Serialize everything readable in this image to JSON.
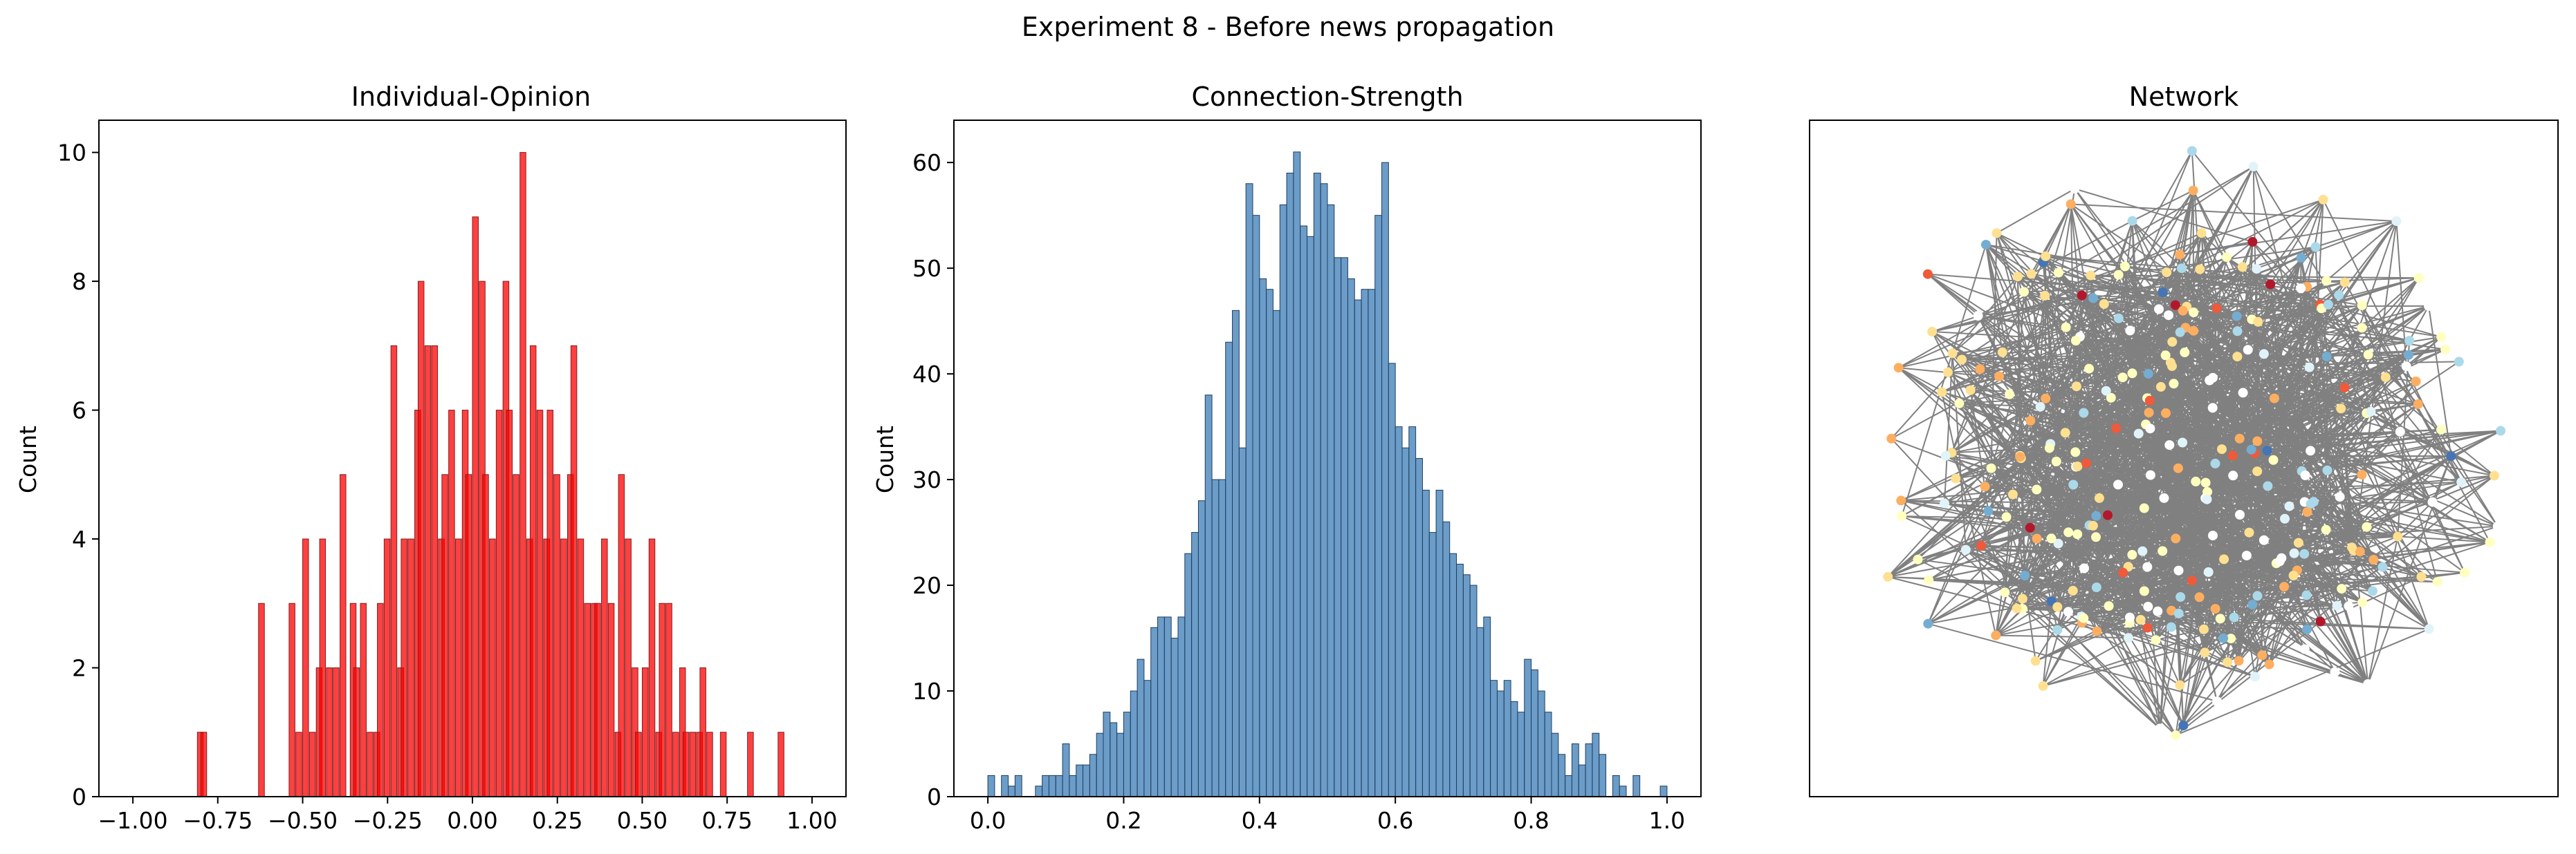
{
  "figure": {
    "suptitle": "Experiment 8 - Before news propagation"
  },
  "chart_data": [
    {
      "type": "bar",
      "title": "Individual-Opinion",
      "xlabel": "",
      "ylabel": "Count",
      "xlim": [
        -1.1,
        1.1
      ],
      "ylim": [
        0,
        10.5
      ],
      "bin_width": 0.0173,
      "color": "#ff0000",
      "edgecolor": "#7f1f1f",
      "xticks": [
        -1.0,
        -0.75,
        -0.5,
        -0.25,
        0.0,
        0.25,
        0.5,
        0.75,
        1.0
      ],
      "xtick_labels": [
        "−1.00",
        "−0.75",
        "−0.50",
        "−0.25",
        "0.00",
        "0.25",
        "0.50",
        "0.75",
        "1.00"
      ],
      "yticks": [
        0,
        2,
        4,
        6,
        8,
        10
      ],
      "ytick_labels": [
        "0",
        "2",
        "4",
        "6",
        "8",
        "10"
      ],
      "bins": [
        [
          -0.81,
          1
        ],
        [
          -0.8,
          1
        ],
        [
          -0.63,
          3
        ],
        [
          -0.54,
          3
        ],
        [
          -0.52,
          1
        ],
        [
          -0.5,
          4
        ],
        [
          -0.48,
          1
        ],
        [
          -0.46,
          2
        ],
        [
          -0.45,
          4
        ],
        [
          -0.43,
          2
        ],
        [
          -0.41,
          2
        ],
        [
          -0.39,
          5
        ],
        [
          -0.36,
          3
        ],
        [
          -0.35,
          2
        ],
        [
          -0.33,
          3
        ],
        [
          -0.31,
          1
        ],
        [
          -0.29,
          1
        ],
        [
          -0.28,
          3
        ],
        [
          -0.26,
          4
        ],
        [
          -0.24,
          7
        ],
        [
          -0.22,
          2
        ],
        [
          -0.21,
          4
        ],
        [
          -0.19,
          4
        ],
        [
          -0.17,
          6
        ],
        [
          -0.16,
          8
        ],
        [
          -0.14,
          7
        ],
        [
          -0.12,
          7
        ],
        [
          -0.1,
          4
        ],
        [
          -0.09,
          5
        ],
        [
          -0.07,
          6
        ],
        [
          -0.05,
          4
        ],
        [
          -0.03,
          6
        ],
        [
          -0.02,
          5
        ],
        [
          0.0,
          9
        ],
        [
          0.02,
          8
        ],
        [
          0.03,
          5
        ],
        [
          0.05,
          4
        ],
        [
          0.07,
          6
        ],
        [
          0.09,
          8
        ],
        [
          0.1,
          6
        ],
        [
          0.12,
          5
        ],
        [
          0.14,
          10
        ],
        [
          0.16,
          4
        ],
        [
          0.17,
          7
        ],
        [
          0.19,
          6
        ],
        [
          0.21,
          4
        ],
        [
          0.22,
          6
        ],
        [
          0.24,
          5
        ],
        [
          0.26,
          4
        ],
        [
          0.28,
          5
        ],
        [
          0.29,
          7
        ],
        [
          0.31,
          4
        ],
        [
          0.33,
          3
        ],
        [
          0.35,
          3
        ],
        [
          0.36,
          3
        ],
        [
          0.38,
          4
        ],
        [
          0.4,
          3
        ],
        [
          0.42,
          1
        ],
        [
          0.43,
          5
        ],
        [
          0.45,
          4
        ],
        [
          0.47,
          2
        ],
        [
          0.48,
          1
        ],
        [
          0.5,
          2
        ],
        [
          0.52,
          4
        ],
        [
          0.54,
          1
        ],
        [
          0.55,
          3
        ],
        [
          0.57,
          3
        ],
        [
          0.59,
          1
        ],
        [
          0.61,
          2
        ],
        [
          0.62,
          1
        ],
        [
          0.64,
          1
        ],
        [
          0.66,
          1
        ],
        [
          0.67,
          2
        ],
        [
          0.69,
          1
        ],
        [
          0.73,
          1
        ],
        [
          0.81,
          1
        ],
        [
          0.9,
          1
        ]
      ]
    },
    {
      "type": "bar",
      "title": "Connection-Strength",
      "xlabel": "",
      "ylabel": "Count",
      "xlim": [
        -0.05,
        1.05
      ],
      "ylim": [
        0,
        64
      ],
      "bin_width": 0.01,
      "color": "#3b7bb6",
      "edgecolor": "#1f3f5f",
      "xticks": [
        0.0,
        0.2,
        0.4,
        0.6,
        0.8,
        1.0
      ],
      "xtick_labels": [
        "0.0",
        "0.2",
        "0.4",
        "0.6",
        "0.8",
        "1.0"
      ],
      "yticks": [
        0,
        10,
        20,
        30,
        40,
        50,
        60
      ],
      "ytick_labels": [
        "0",
        "10",
        "20",
        "30",
        "40",
        "50",
        "60"
      ],
      "bins": [
        [
          0.0,
          2
        ],
        [
          0.01,
          0
        ],
        [
          0.02,
          2
        ],
        [
          0.03,
          1
        ],
        [
          0.04,
          2
        ],
        [
          0.05,
          0
        ],
        [
          0.06,
          0
        ],
        [
          0.07,
          1
        ],
        [
          0.08,
          2
        ],
        [
          0.09,
          2
        ],
        [
          0.1,
          2
        ],
        [
          0.11,
          5
        ],
        [
          0.12,
          2
        ],
        [
          0.13,
          3
        ],
        [
          0.14,
          3
        ],
        [
          0.15,
          4
        ],
        [
          0.16,
          6
        ],
        [
          0.17,
          8
        ],
        [
          0.18,
          7
        ],
        [
          0.19,
          6
        ],
        [
          0.2,
          8
        ],
        [
          0.21,
          10
        ],
        [
          0.22,
          13
        ],
        [
          0.23,
          11
        ],
        [
          0.24,
          16
        ],
        [
          0.25,
          17
        ],
        [
          0.26,
          17
        ],
        [
          0.27,
          15
        ],
        [
          0.28,
          17
        ],
        [
          0.29,
          23
        ],
        [
          0.3,
          25
        ],
        [
          0.31,
          28
        ],
        [
          0.32,
          38
        ],
        [
          0.33,
          30
        ],
        [
          0.34,
          30
        ],
        [
          0.35,
          43
        ],
        [
          0.36,
          46
        ],
        [
          0.37,
          33
        ],
        [
          0.38,
          58
        ],
        [
          0.39,
          55
        ],
        [
          0.4,
          49
        ],
        [
          0.41,
          48
        ],
        [
          0.42,
          46
        ],
        [
          0.43,
          56
        ],
        [
          0.44,
          59
        ],
        [
          0.45,
          61
        ],
        [
          0.46,
          54
        ],
        [
          0.47,
          53
        ],
        [
          0.48,
          59
        ],
        [
          0.49,
          58
        ],
        [
          0.5,
          56
        ],
        [
          0.51,
          51
        ],
        [
          0.52,
          51
        ],
        [
          0.53,
          49
        ],
        [
          0.54,
          47
        ],
        [
          0.55,
          48
        ],
        [
          0.56,
          48
        ],
        [
          0.57,
          55
        ],
        [
          0.58,
          60
        ],
        [
          0.59,
          41
        ],
        [
          0.6,
          35
        ],
        [
          0.61,
          33
        ],
        [
          0.62,
          35
        ],
        [
          0.63,
          32
        ],
        [
          0.64,
          29
        ],
        [
          0.65,
          25
        ],
        [
          0.66,
          29
        ],
        [
          0.67,
          26
        ],
        [
          0.68,
          23
        ],
        [
          0.69,
          22
        ],
        [
          0.7,
          21
        ],
        [
          0.71,
          20
        ],
        [
          0.72,
          16
        ],
        [
          0.73,
          17
        ],
        [
          0.74,
          11
        ],
        [
          0.75,
          10
        ],
        [
          0.76,
          11
        ],
        [
          0.77,
          9
        ],
        [
          0.78,
          8
        ],
        [
          0.79,
          13
        ],
        [
          0.8,
          12
        ],
        [
          0.81,
          10
        ],
        [
          0.82,
          8
        ],
        [
          0.83,
          6
        ],
        [
          0.84,
          4
        ],
        [
          0.85,
          2
        ],
        [
          0.86,
          5
        ],
        [
          0.87,
          3
        ],
        [
          0.88,
          5
        ],
        [
          0.89,
          6
        ],
        [
          0.9,
          4
        ],
        [
          0.91,
          0
        ],
        [
          0.92,
          2
        ],
        [
          0.93,
          1
        ],
        [
          0.94,
          0
        ],
        [
          0.95,
          2
        ],
        [
          0.96,
          0
        ],
        [
          0.97,
          0
        ],
        [
          0.98,
          0
        ],
        [
          0.99,
          1
        ]
      ]
    },
    {
      "type": "network",
      "title": "Network",
      "node_count": 320,
      "edge_color": "#808080",
      "node_colormap": [
        "#b2182b",
        "#ef5a3a",
        "#fdae61",
        "#fee090",
        "#ffffbf",
        "#ffffff",
        "#e0f3f8",
        "#abd9e9",
        "#74add1",
        "#4575b4"
      ]
    }
  ]
}
